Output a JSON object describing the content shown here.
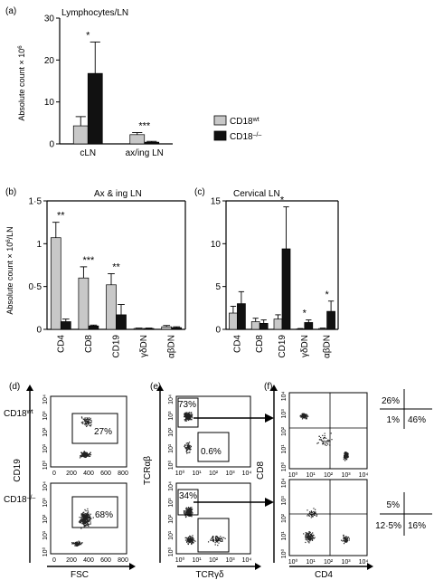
{
  "colors": {
    "wt": "#c8c8c8",
    "ko": "#111111",
    "axis": "#000000",
    "dot": "#222222"
  },
  "panel_labels": {
    "a": "(a)",
    "b": "(b)",
    "c": "(c)",
    "d": "(d)",
    "e": "(e)",
    "f": "(f)"
  },
  "legend": {
    "wt_base": "CD18",
    "wt_sup": "wt",
    "ko_base": "CD18",
    "ko_sup": "–/–"
  },
  "chart_data": [
    {
      "id": "a",
      "type": "bar",
      "title": "Lymphocytes/LN",
      "ylabel_base": "Absolute count × 10",
      "ylabel_sup": "6",
      "ylim": [
        0,
        30
      ],
      "yticks": [
        0,
        10,
        20,
        30
      ],
      "categories": [
        "cLN",
        "ax/ing LN"
      ],
      "series": [
        {
          "name": "CD18wt",
          "values": [
            4.3,
            2.2
          ],
          "errors": [
            2.2,
            0.5
          ]
        },
        {
          "name": "CD18–/–",
          "values": [
            16.8,
            0.4
          ],
          "errors": [
            7.5,
            0.2
          ]
        }
      ],
      "annotations": [
        "*",
        "***"
      ]
    },
    {
      "id": "b",
      "type": "bar",
      "title": "Ax & ing LN",
      "ylabel_base": "Absolute count × 10",
      "ylabel_sup": "6",
      "ylabel_tail": "/LN",
      "ylim": [
        0,
        1.5
      ],
      "yticks": [
        0,
        0.5,
        1,
        1.5
      ],
      "ytick_labels": [
        "0",
        "0·5",
        "1",
        "1·5"
      ],
      "categories": [
        "CD4",
        "CD8",
        "CD19",
        "γδDN",
        "αβDN"
      ],
      "series": [
        {
          "name": "CD18wt",
          "values": [
            1.07,
            0.6,
            0.52,
            0.01,
            0.03
          ],
          "errors": [
            0.18,
            0.13,
            0.13,
            0.005,
            0.015
          ]
        },
        {
          "name": "CD18–/–",
          "values": [
            0.09,
            0.04,
            0.17,
            0.01,
            0.02
          ],
          "errors": [
            0.03,
            0.01,
            0.12,
            0.005,
            0.01
          ]
        }
      ],
      "annotations": [
        "**",
        "***",
        "**",
        "",
        ""
      ]
    },
    {
      "id": "c",
      "type": "bar",
      "title": "Cervical LN",
      "ylim": [
        0,
        15
      ],
      "yticks": [
        0,
        5,
        10,
        15
      ],
      "categories": [
        "CD4",
        "CD8",
        "CD19",
        "γδDN",
        "αβDN"
      ],
      "series": [
        {
          "name": "CD18wt",
          "values": [
            1.9,
            0.9,
            1.2,
            0.05,
            0.1
          ],
          "errors": [
            0.8,
            0.4,
            0.5,
            0.05,
            0.05
          ]
        },
        {
          "name": "CD18–/–",
          "values": [
            3.0,
            0.7,
            9.4,
            0.8,
            2.1
          ],
          "errors": [
            1.4,
            0.4,
            4.9,
            0.3,
            1.2
          ]
        }
      ],
      "annotations": [
        "",
        "",
        "*",
        "*",
        "*"
      ]
    }
  ],
  "flow": {
    "axes": {
      "d": {
        "y": "CD19",
        "x": "FSC"
      },
      "e": {
        "y": "TCRαβ",
        "x": "TCRγδ"
      },
      "f": {
        "y": "CD8",
        "x": "CD4"
      }
    },
    "row_labels": {
      "wt_base": "CD18",
      "wt_sup": "wt",
      "ko_base": "CD18",
      "ko_sup": "–/–"
    },
    "x_ticks_fsc": [
      "0",
      "200",
      "400",
      "600",
      "800"
    ],
    "log_ticks": [
      "10⁰",
      "10¹",
      "10²",
      "10³",
      "10⁴"
    ],
    "gates": {
      "d_wt": "27%",
      "d_ko": "68%",
      "e_wt_ab": "73%",
      "e_wt_gd": "0.6%",
      "e_ko_ab": "34%",
      "e_ko_gd": "4%"
    },
    "quadrants": {
      "wt": {
        "ul": "26%",
        "ll": "1%",
        "lr": "46%"
      },
      "ko": {
        "ul": "5%",
        "ll": "12·5%",
        "lr": "16%"
      }
    }
  }
}
